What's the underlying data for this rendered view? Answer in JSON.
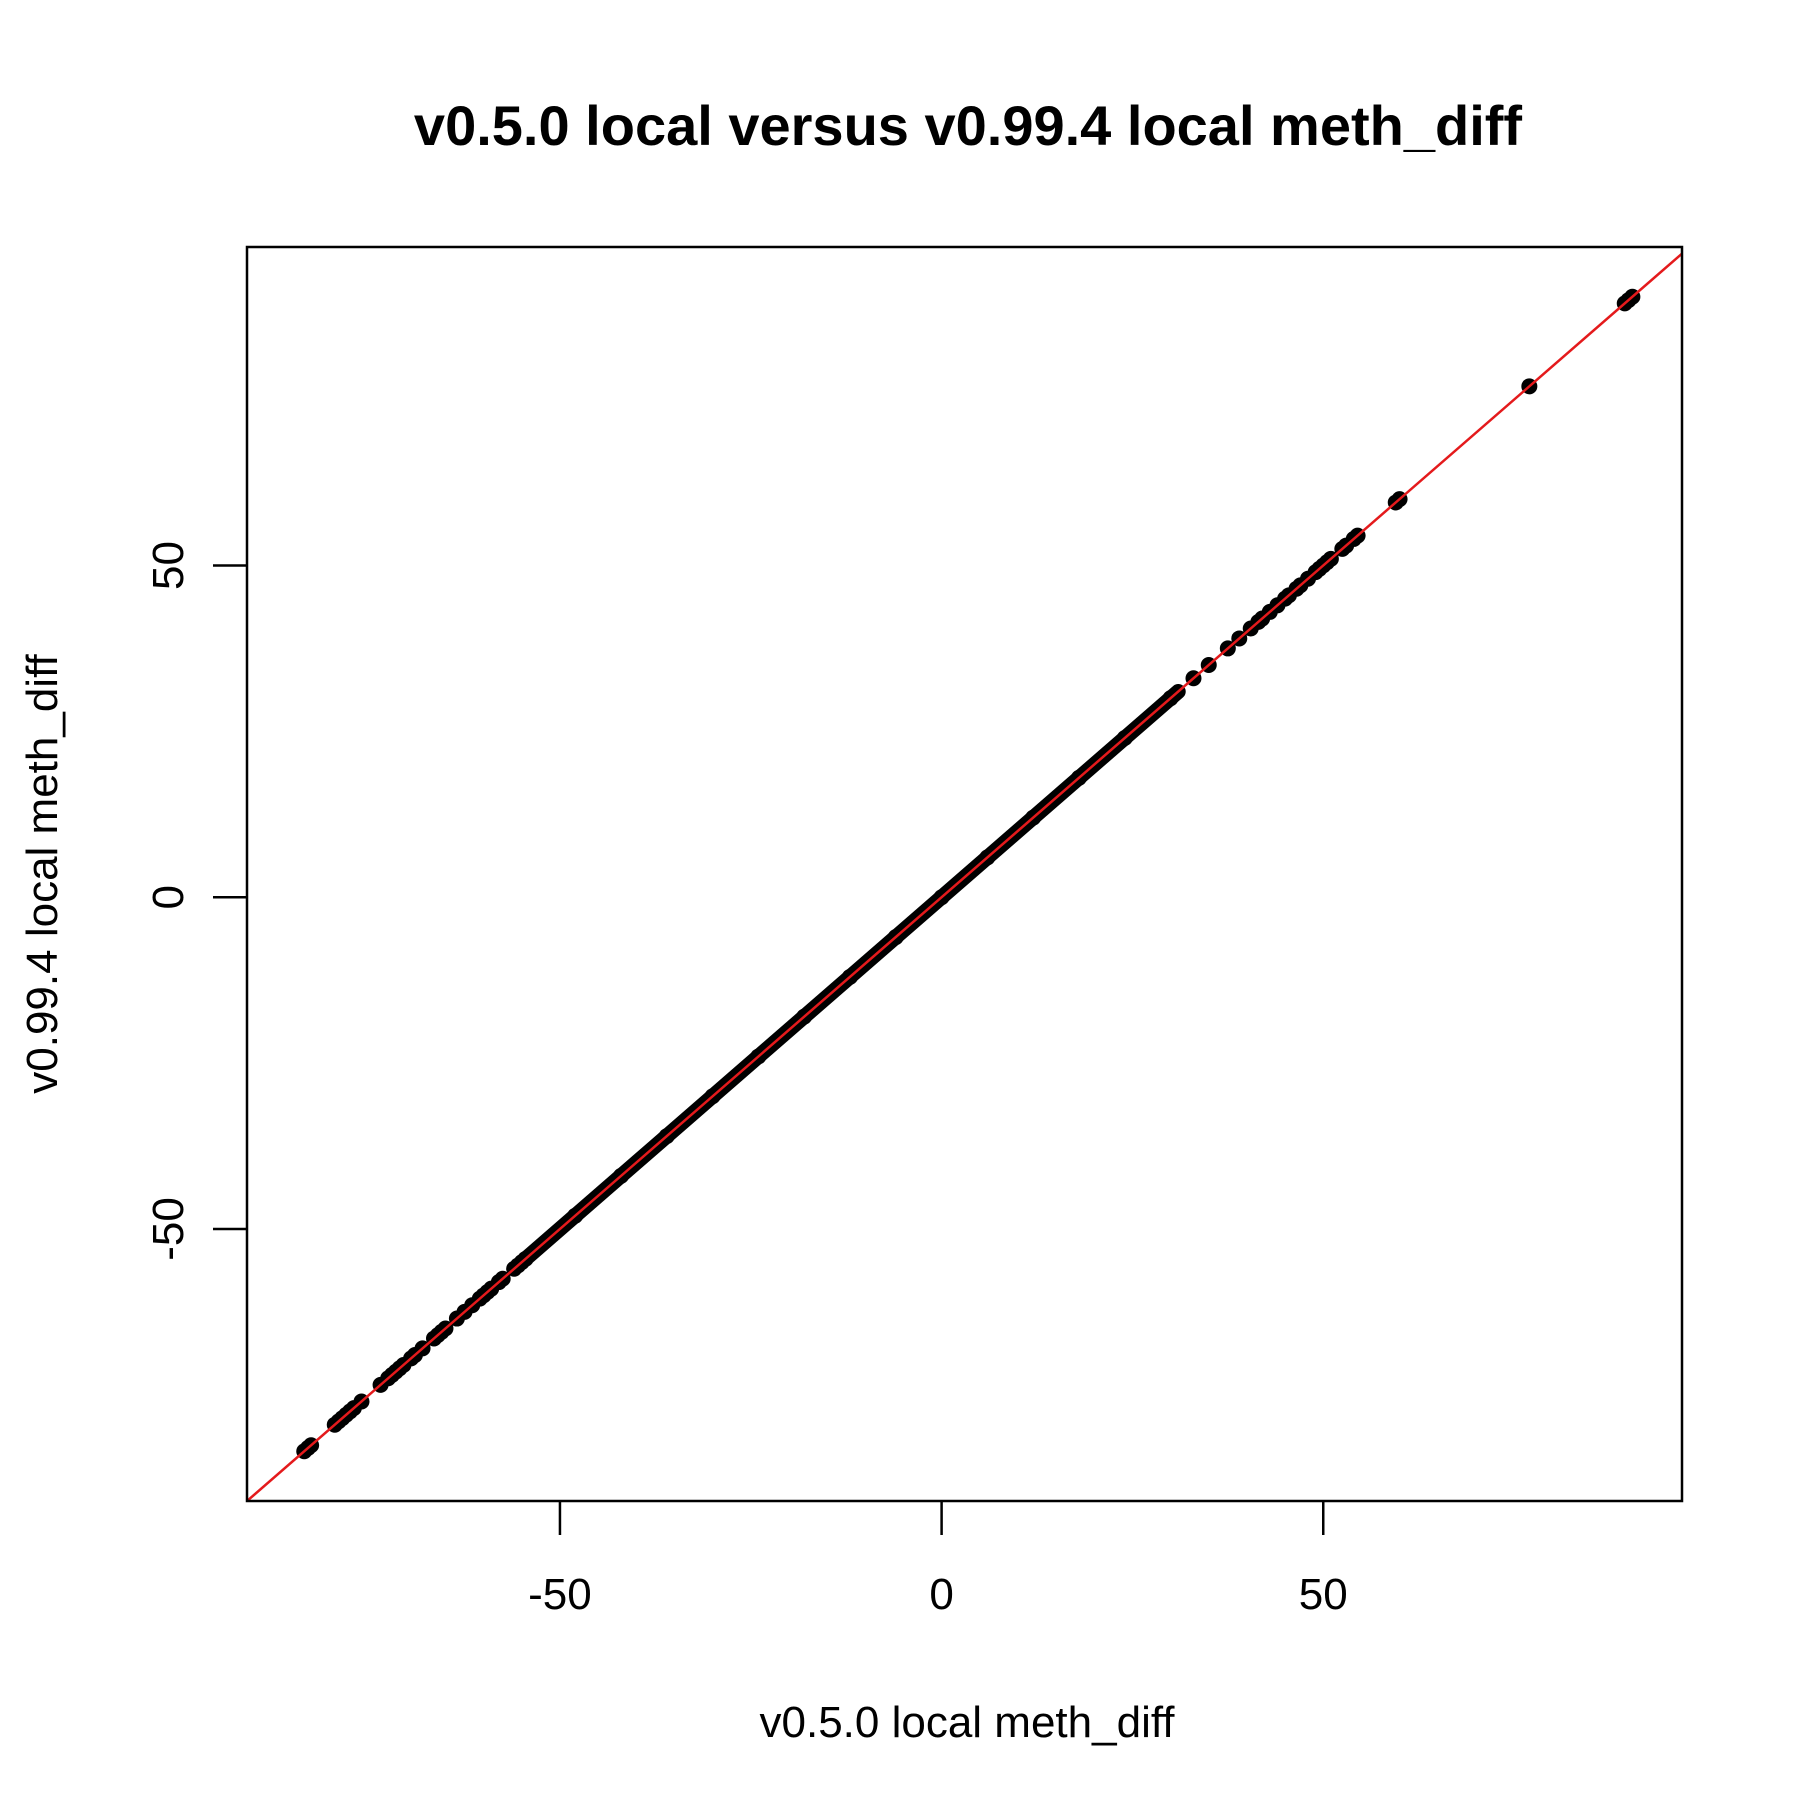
{
  "chart_data": {
    "type": "scatter",
    "title": "v0.5.0 local versus v0.99.4 local meth_diff",
    "xlabel": "v0.5.0 local meth_diff",
    "ylabel": "v0.99.4 local meth_diff",
    "xlim": [
      -91,
      97
    ],
    "ylim": [
      -91,
      98
    ],
    "x_ticks": [
      -50,
      0,
      50
    ],
    "y_ticks": [
      -50,
      0,
      50
    ],
    "x_tick_labels": [
      "-50",
      "0",
      "50"
    ],
    "y_tick_labels": [
      "-50",
      "0",
      "50"
    ],
    "grid": false,
    "legend": "none",
    "point_color": "#000000",
    "reference_line": {
      "type": "identity",
      "slope": 1,
      "intercept": 0,
      "color": "#e41a1c"
    },
    "series": [
      {
        "points": [
          [
            -83.5,
            -83.5
          ],
          [
            -83.0,
            -83.0
          ],
          [
            -82.6,
            -82.6
          ],
          [
            -79.5,
            -79.5
          ],
          [
            -79.0,
            -79.0
          ],
          [
            -78.5,
            -78.5
          ],
          [
            -78.0,
            -78.0
          ],
          [
            -77.5,
            -77.5
          ],
          [
            -77.0,
            -77.0
          ],
          [
            -76.0,
            -76.0
          ],
          [
            -73.5,
            -73.5
          ],
          [
            -72.5,
            -72.5
          ],
          [
            -72.0,
            -72.0
          ],
          [
            -71.5,
            -71.5
          ],
          [
            -71.0,
            -71.0
          ],
          [
            -70.5,
            -70.5
          ],
          [
            -69.5,
            -69.5
          ],
          [
            -69.0,
            -69.0
          ],
          [
            -68.0,
            -68.0
          ],
          [
            -66.5,
            -66.5
          ],
          [
            -66.0,
            -66.0
          ],
          [
            -65.5,
            -65.5
          ],
          [
            -65.0,
            -65.0
          ],
          [
            -63.5,
            -63.5
          ],
          [
            -62.5,
            -62.5
          ],
          [
            -61.5,
            -61.5
          ],
          [
            -60.5,
            -60.5
          ],
          [
            -60.0,
            -60.0
          ],
          [
            -59.5,
            -59.5
          ],
          [
            -59.0,
            -59.0
          ],
          [
            -58.0,
            -58.0
          ],
          [
            -57.5,
            -57.5
          ],
          [
            -56.0,
            -56.0
          ],
          [
            -55.5,
            -55.5
          ],
          [
            -55.0,
            -55.0
          ],
          [
            -54.5,
            -54.5
          ],
          [
            -48.0,
            -48.0
          ],
          [
            -42.0,
            -42.0
          ],
          [
            -36.0,
            -36.0
          ],
          [
            -30.0,
            -30.0
          ],
          [
            -24.0,
            -24.0
          ],
          [
            -18.0,
            -18.0
          ],
          [
            -12.0,
            -12.0
          ],
          [
            -6.0,
            -6.0
          ],
          [
            0.0,
            0.0
          ],
          [
            6.0,
            6.0
          ],
          [
            12.0,
            12.0
          ],
          [
            18.0,
            18.0
          ],
          [
            24.0,
            24.0
          ],
          [
            30.0,
            30.0
          ],
          [
            33.0,
            33.0
          ],
          [
            35.0,
            35.0
          ],
          [
            37.5,
            37.5
          ],
          [
            39.0,
            39.0
          ],
          [
            40.5,
            40.5
          ],
          [
            41.5,
            41.5
          ],
          [
            42.0,
            42.0
          ],
          [
            43.0,
            43.0
          ],
          [
            44.0,
            44.0
          ],
          [
            45.0,
            45.0
          ],
          [
            45.5,
            45.5
          ],
          [
            46.5,
            46.5
          ],
          [
            47.0,
            47.0
          ],
          [
            48.0,
            48.0
          ],
          [
            49.0,
            49.0
          ],
          [
            49.5,
            49.5
          ],
          [
            50.0,
            50.0
          ],
          [
            50.5,
            50.5
          ],
          [
            51.0,
            51.0
          ],
          [
            52.5,
            52.5
          ],
          [
            53.0,
            53.0
          ],
          [
            54.0,
            54.0
          ],
          [
            54.5,
            54.5
          ],
          [
            59.5,
            59.5
          ],
          [
            60.0,
            60.0
          ],
          [
            77.0,
            77.0
          ],
          [
            89.5,
            89.5
          ],
          [
            90.0,
            90.0
          ],
          [
            90.5,
            90.5
          ]
        ],
        "dense_segments": [
          {
            "from": -54.5,
            "to": 31.0
          }
        ]
      }
    ]
  }
}
